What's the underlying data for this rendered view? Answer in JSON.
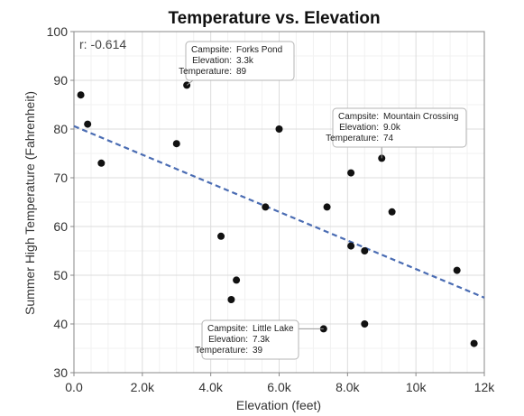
{
  "chart_data": {
    "type": "scatter",
    "title": "Temperature vs. Elevation",
    "xlabel": "Elevation (feet)",
    "ylabel": "Summer High Temperature (Fahrenheit)",
    "xlim": [
      0,
      12000
    ],
    "ylim": [
      30,
      100
    ],
    "x_ticks": [
      0,
      2000,
      4000,
      6000,
      8000,
      10000,
      12000
    ],
    "x_tick_labels": [
      "0.0",
      "2.0k",
      "4.0k",
      "6.0k",
      "8.0k",
      "10k",
      "12k"
    ],
    "y_ticks": [
      30,
      40,
      50,
      60,
      70,
      80,
      90,
      100
    ],
    "y_tick_labels": [
      "30",
      "40",
      "50",
      "60",
      "70",
      "80",
      "90",
      "100"
    ],
    "grid": true,
    "correlation_label": "r: -0.614",
    "trendline": {
      "style": "dashed",
      "color": "#4a6cb3",
      "x": [
        0,
        12000
      ],
      "y": [
        80.6,
        45.4
      ]
    },
    "point_color": "#111111",
    "points": [
      {
        "x": 200,
        "y": 87
      },
      {
        "x": 400,
        "y": 81
      },
      {
        "x": 800,
        "y": 73
      },
      {
        "x": 3000,
        "y": 77
      },
      {
        "x": 3300,
        "y": 89
      },
      {
        "x": 4300,
        "y": 58
      },
      {
        "x": 4600,
        "y": 45
      },
      {
        "x": 4750,
        "y": 49
      },
      {
        "x": 5600,
        "y": 64
      },
      {
        "x": 6000,
        "y": 80
      },
      {
        "x": 7300,
        "y": 39
      },
      {
        "x": 7400,
        "y": 64
      },
      {
        "x": 8100,
        "y": 71
      },
      {
        "x": 8100,
        "y": 56
      },
      {
        "x": 8500,
        "y": 55
      },
      {
        "x": 8500,
        "y": 40
      },
      {
        "x": 9000,
        "y": 74
      },
      {
        "x": 9300,
        "y": 63
      },
      {
        "x": 11200,
        "y": 51
      },
      {
        "x": 11700,
        "y": 36
      }
    ],
    "tooltips": [
      {
        "point_index": 4,
        "lines": [
          {
            "key": "Campsite:",
            "value": "Forks Pond"
          },
          {
            "key": "Elevation:",
            "value": "3.3k"
          },
          {
            "key": "Temperature:",
            "value": "89"
          }
        ]
      },
      {
        "point_index": 16,
        "lines": [
          {
            "key": "Campsite:",
            "value": "Mountain Crossing"
          },
          {
            "key": "Elevation:",
            "value": "9.0k"
          },
          {
            "key": "Temperature:",
            "value": "74"
          }
        ]
      },
      {
        "point_index": 10,
        "lines": [
          {
            "key": "Campsite:",
            "value": "Little Lake"
          },
          {
            "key": "Elevation:",
            "value": "7.3k"
          },
          {
            "key": "Temperature:",
            "value": "39"
          }
        ]
      }
    ]
  }
}
